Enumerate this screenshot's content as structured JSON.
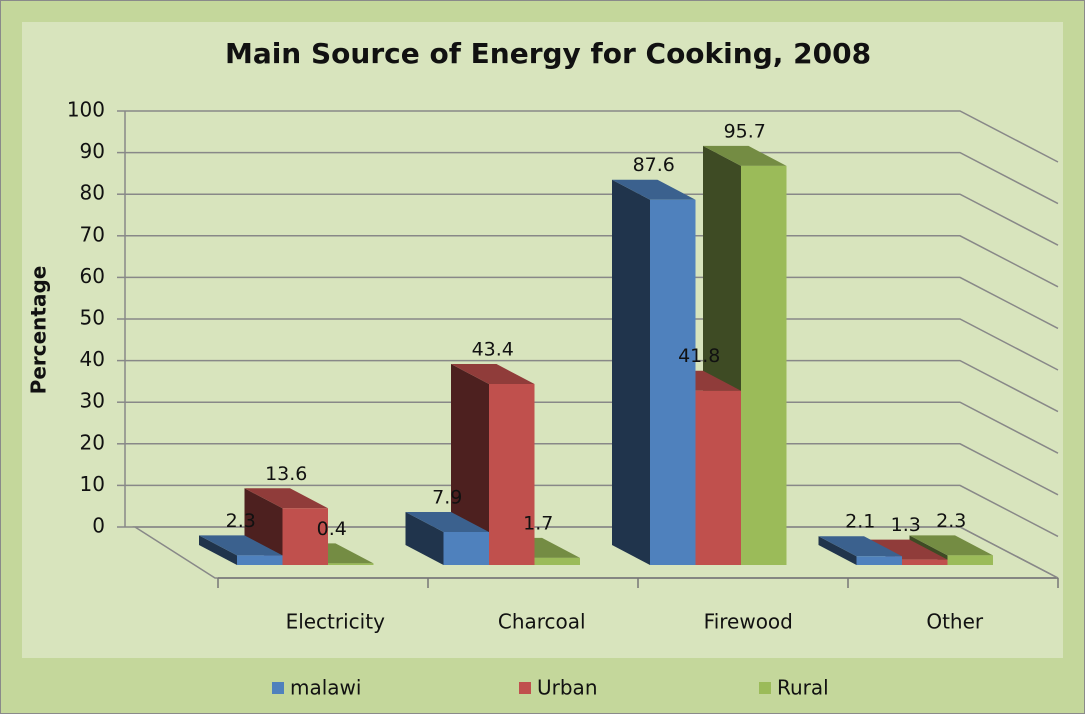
{
  "chart_data": {
    "type": "bar3d",
    "title": "Main Source of Energy for Cooking, 2008",
    "y_label": "Percentage",
    "categories": [
      "Electricity",
      "Charcoal",
      "Firewood",
      "Other"
    ],
    "series": [
      {
        "name": "malawi",
        "color": "#4f81bd",
        "values": [
          2.3,
          7.9,
          87.6,
          2.1
        ]
      },
      {
        "name": "Urban",
        "color": "#c0504d",
        "values": [
          13.6,
          43.4,
          41.8,
          1.3
        ]
      },
      {
        "name": "Rural",
        "color": "#9bbb59",
        "values": [
          0.4,
          1.7,
          95.7,
          2.3
        ]
      }
    ],
    "ylim": [
      0,
      100
    ],
    "yticks": [
      0,
      10,
      20,
      30,
      40,
      50,
      60,
      70,
      80,
      90,
      100
    ],
    "grid": true,
    "legend": "bottom"
  }
}
